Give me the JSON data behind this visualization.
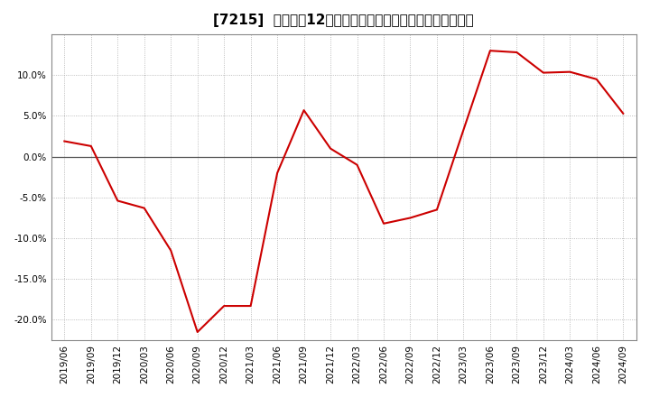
{
  "title": "[7215]  売上高の12か月移動合計の対前年同期増減率の推移",
  "line_color": "#cc0000",
  "background_color": "#ffffff",
  "plot_bg_color": "#ffffff",
  "grid_color": "#aaaaaa",
  "dates": [
    "2019/06",
    "2019/09",
    "2019/12",
    "2020/03",
    "2020/06",
    "2020/09",
    "2020/12",
    "2021/03",
    "2021/06",
    "2021/09",
    "2021/12",
    "2022/03",
    "2022/06",
    "2022/09",
    "2022/12",
    "2023/03",
    "2023/06",
    "2023/09",
    "2023/12",
    "2024/03",
    "2024/06",
    "2024/09"
  ],
  "values": [
    0.019,
    0.013,
    -0.054,
    -0.063,
    -0.115,
    -0.215,
    -0.183,
    -0.183,
    -0.02,
    0.057,
    0.01,
    -0.01,
    -0.082,
    -0.075,
    -0.065,
    0.033,
    0.13,
    0.128,
    0.103,
    0.104,
    0.095,
    0.053
  ],
  "ylim": [
    -0.225,
    0.15
  ],
  "yticks": [
    -0.2,
    -0.15,
    -0.1,
    -0.05,
    0.0,
    0.05,
    0.1
  ],
  "title_fontsize": 11,
  "tick_fontsize": 7.5,
  "zero_line_color": "#555555",
  "grid_linewidth": 0.6
}
